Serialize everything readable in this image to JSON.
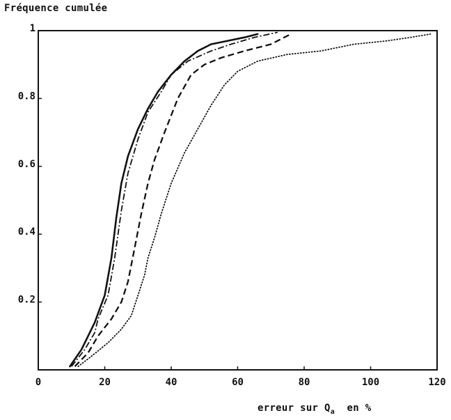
{
  "chart_data": {
    "type": "line",
    "title": "",
    "ylabel": "Fréquence cumulée",
    "xlabel": {
      "text_before": "erreur sur Q",
      "subscript": "a",
      "text_after": "en %"
    },
    "xlim": [
      0,
      120
    ],
    "ylim": [
      0,
      1
    ],
    "x_ticks": [
      0,
      20,
      40,
      60,
      80,
      100,
      120
    ],
    "y_ticks": [
      0.2,
      0.4,
      0.6,
      0.8,
      1
    ],
    "y_tick_labels": [
      "0.2",
      "0.4",
      "0.6",
      "0.8",
      "1"
    ],
    "grid": false,
    "legend": "none",
    "series": [
      {
        "style": "solid",
        "points": [
          [
            9.5,
            0.01
          ],
          [
            13,
            0.06
          ],
          [
            17,
            0.14
          ],
          [
            20,
            0.22
          ],
          [
            22,
            0.33
          ],
          [
            23.5,
            0.45
          ],
          [
            25,
            0.55
          ],
          [
            27,
            0.63
          ],
          [
            30,
            0.71
          ],
          [
            33,
            0.77
          ],
          [
            36,
            0.82
          ],
          [
            40,
            0.87
          ],
          [
            44,
            0.91
          ],
          [
            48,
            0.94
          ],
          [
            52,
            0.96
          ],
          [
            57,
            0.97
          ],
          [
            62,
            0.98
          ],
          [
            66,
            0.99
          ]
        ]
      },
      {
        "style": "dashdot",
        "points": [
          [
            10,
            0.01
          ],
          [
            14,
            0.06
          ],
          [
            17,
            0.11
          ],
          [
            18,
            0.15
          ],
          [
            21,
            0.22
          ],
          [
            23,
            0.33
          ],
          [
            25,
            0.47
          ],
          [
            27,
            0.58
          ],
          [
            30,
            0.68
          ],
          [
            33,
            0.76
          ],
          [
            37,
            0.82
          ],
          [
            40,
            0.87
          ],
          [
            45,
            0.91
          ],
          [
            52,
            0.94
          ],
          [
            58,
            0.96
          ],
          [
            65,
            0.98
          ],
          [
            72,
            0.995
          ]
        ]
      },
      {
        "style": "dashed",
        "points": [
          [
            11,
            0.01
          ],
          [
            15,
            0.05
          ],
          [
            18,
            0.1
          ],
          [
            22,
            0.15
          ],
          [
            25,
            0.2
          ],
          [
            27,
            0.26
          ],
          [
            29,
            0.36
          ],
          [
            31,
            0.46
          ],
          [
            33,
            0.55
          ],
          [
            35,
            0.62
          ],
          [
            38,
            0.7
          ],
          [
            42,
            0.8
          ],
          [
            46,
            0.87
          ],
          [
            50,
            0.9
          ],
          [
            55,
            0.92
          ],
          [
            62,
            0.94
          ],
          [
            70,
            0.96
          ],
          [
            76,
            0.99
          ]
        ]
      },
      {
        "style": "dotted",
        "points": [
          [
            12,
            0.01
          ],
          [
            16,
            0.04
          ],
          [
            21,
            0.08
          ],
          [
            25,
            0.12
          ],
          [
            28,
            0.16
          ],
          [
            30,
            0.22
          ],
          [
            32,
            0.28
          ],
          [
            33,
            0.33
          ],
          [
            35,
            0.39
          ],
          [
            37,
            0.46
          ],
          [
            40,
            0.55
          ],
          [
            44,
            0.64
          ],
          [
            48,
            0.71
          ],
          [
            52,
            0.78
          ],
          [
            56,
            0.84
          ],
          [
            60,
            0.88
          ],
          [
            66,
            0.91
          ],
          [
            75,
            0.93
          ],
          [
            85,
            0.94
          ],
          [
            95,
            0.96
          ],
          [
            105,
            0.97
          ],
          [
            112,
            0.98
          ],
          [
            118,
            0.99
          ]
        ]
      }
    ]
  }
}
